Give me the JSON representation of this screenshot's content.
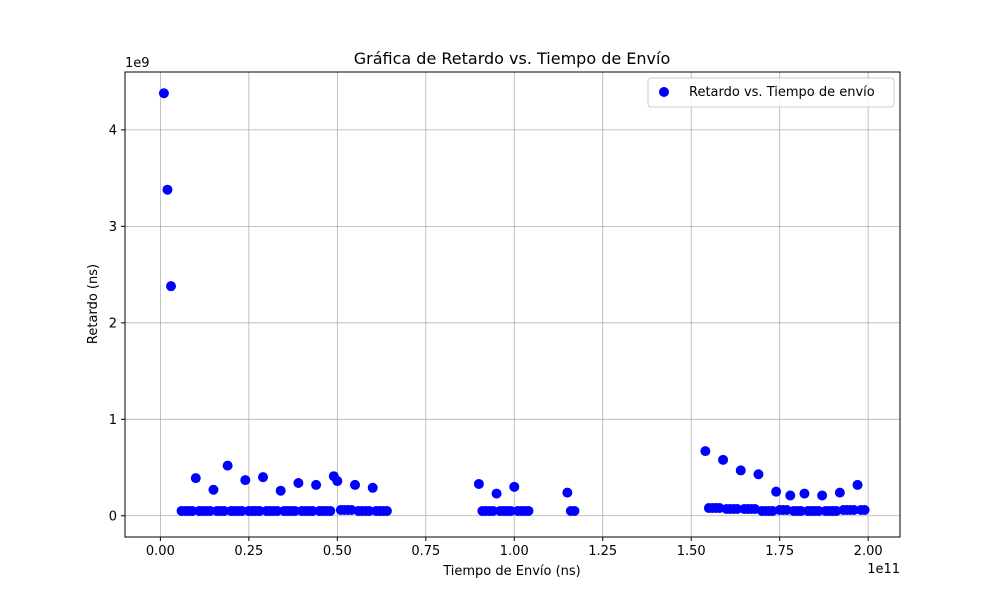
{
  "chart_data": {
    "type": "scatter",
    "title": "Gráfica de Retardo vs. Tiempo de Envío",
    "xlabel": "Tiempo de Envío (ns)",
    "ylabel": "Retardo (ns)",
    "x_offset_label": "1e11",
    "y_offset_label": "1e9",
    "xlim": [
      -0.1,
      2.09
    ],
    "ylim": [
      -0.22,
      4.6
    ],
    "xticks": [
      0.0,
      0.25,
      0.5,
      0.75,
      1.0,
      1.25,
      1.5,
      1.75,
      2.0
    ],
    "xtick_labels": [
      "0.00",
      "0.25",
      "0.50",
      "0.75",
      "1.00",
      "1.25",
      "1.50",
      "1.75",
      "2.00"
    ],
    "yticks": [
      0,
      1,
      2,
      3,
      4
    ],
    "ytick_labels": [
      "0",
      "1",
      "2",
      "3",
      "4"
    ],
    "grid": true,
    "legend_position": "top-right",
    "series": [
      {
        "name": "Retardo vs. Tiempo de envío",
        "color": "#0000ff",
        "marker": "circle",
        "x": [
          0.01,
          0.02,
          0.03,
          0.06,
          0.07,
          0.08,
          0.09,
          0.1,
          0.11,
          0.12,
          0.13,
          0.14,
          0.15,
          0.16,
          0.17,
          0.18,
          0.19,
          0.2,
          0.21,
          0.22,
          0.23,
          0.24,
          0.25,
          0.26,
          0.27,
          0.28,
          0.29,
          0.3,
          0.31,
          0.32,
          0.33,
          0.34,
          0.35,
          0.36,
          0.37,
          0.38,
          0.39,
          0.4,
          0.41,
          0.42,
          0.43,
          0.44,
          0.45,
          0.46,
          0.47,
          0.48,
          0.49,
          0.5,
          0.51,
          0.52,
          0.53,
          0.54,
          0.55,
          0.56,
          0.57,
          0.58,
          0.59,
          0.6,
          0.61,
          0.62,
          0.63,
          0.64,
          0.9,
          0.91,
          0.92,
          0.93,
          0.94,
          0.95,
          0.96,
          0.97,
          0.98,
          0.99,
          1.0,
          1.01,
          1.02,
          1.03,
          1.04,
          1.15,
          1.16,
          1.17,
          1.54,
          1.55,
          1.56,
          1.57,
          1.58,
          1.59,
          1.6,
          1.61,
          1.62,
          1.63,
          1.64,
          1.65,
          1.66,
          1.67,
          1.68,
          1.69,
          1.7,
          1.71,
          1.72,
          1.73,
          1.74,
          1.75,
          1.76,
          1.77,
          1.78,
          1.79,
          1.8,
          1.81,
          1.82,
          1.83,
          1.84,
          1.85,
          1.86,
          1.87,
          1.88,
          1.89,
          1.9,
          1.91,
          1.92,
          1.93,
          1.94,
          1.95,
          1.96,
          1.97,
          1.98,
          1.99
        ],
        "y": [
          4.38,
          3.38,
          2.38,
          0.05,
          0.05,
          0.05,
          0.05,
          0.39,
          0.05,
          0.05,
          0.05,
          0.05,
          0.27,
          0.05,
          0.05,
          0.05,
          0.52,
          0.05,
          0.05,
          0.05,
          0.05,
          0.37,
          0.05,
          0.05,
          0.05,
          0.05,
          0.4,
          0.05,
          0.05,
          0.05,
          0.05,
          0.26,
          0.05,
          0.05,
          0.05,
          0.05,
          0.34,
          0.05,
          0.05,
          0.05,
          0.05,
          0.32,
          0.05,
          0.05,
          0.05,
          0.05,
          0.41,
          0.36,
          0.06,
          0.06,
          0.06,
          0.06,
          0.32,
          0.05,
          0.05,
          0.05,
          0.05,
          0.29,
          0.05,
          0.05,
          0.05,
          0.05,
          0.33,
          0.05,
          0.05,
          0.05,
          0.05,
          0.23,
          0.05,
          0.05,
          0.05,
          0.05,
          0.3,
          0.05,
          0.05,
          0.05,
          0.05,
          0.24,
          0.05,
          0.05,
          0.67,
          0.08,
          0.08,
          0.08,
          0.08,
          0.58,
          0.07,
          0.07,
          0.07,
          0.07,
          0.47,
          0.07,
          0.07,
          0.07,
          0.07,
          0.43,
          0.05,
          0.05,
          0.05,
          0.05,
          0.25,
          0.06,
          0.06,
          0.06,
          0.21,
          0.05,
          0.05,
          0.05,
          0.23,
          0.05,
          0.05,
          0.05,
          0.05,
          0.21,
          0.05,
          0.05,
          0.05,
          0.05,
          0.24,
          0.06,
          0.06,
          0.06,
          0.06,
          0.32,
          0.06,
          0.06
        ]
      }
    ]
  }
}
